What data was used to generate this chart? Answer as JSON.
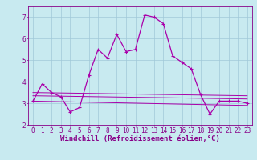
{
  "xlabel": "Windchill (Refroidissement éolien,°C)",
  "background_color": "#c8eaf0",
  "grid_color": "#a0c8d8",
  "line_color": "#aa00aa",
  "xlim": [
    -0.5,
    23.5
  ],
  "ylim": [
    2.0,
    7.5
  ],
  "yticks": [
    2,
    3,
    4,
    5,
    6,
    7
  ],
  "xticks": [
    0,
    1,
    2,
    3,
    4,
    5,
    6,
    7,
    8,
    9,
    10,
    11,
    12,
    13,
    14,
    15,
    16,
    17,
    18,
    19,
    20,
    21,
    22,
    23
  ],
  "series1_x": [
    0,
    1,
    2,
    3,
    4,
    5,
    6,
    7,
    8,
    9,
    10,
    11,
    12,
    13,
    14,
    15,
    16,
    17,
    18,
    19,
    20,
    21,
    22,
    23
  ],
  "series1_y": [
    3.1,
    3.9,
    3.5,
    3.3,
    2.6,
    2.8,
    4.3,
    5.5,
    5.1,
    6.2,
    5.4,
    5.5,
    7.1,
    7.0,
    6.7,
    5.2,
    4.9,
    4.6,
    3.4,
    2.5,
    3.1,
    3.1,
    3.1,
    3.0
  ],
  "series2_x": [
    0,
    23
  ],
  "series2_y": [
    3.5,
    3.35
  ],
  "series3_x": [
    0,
    23
  ],
  "series3_y": [
    3.35,
    3.2
  ],
  "series4_x": [
    0,
    23
  ],
  "series4_y": [
    3.1,
    2.9
  ],
  "tick_fontsize": 5.5,
  "label_fontsize": 6.5
}
